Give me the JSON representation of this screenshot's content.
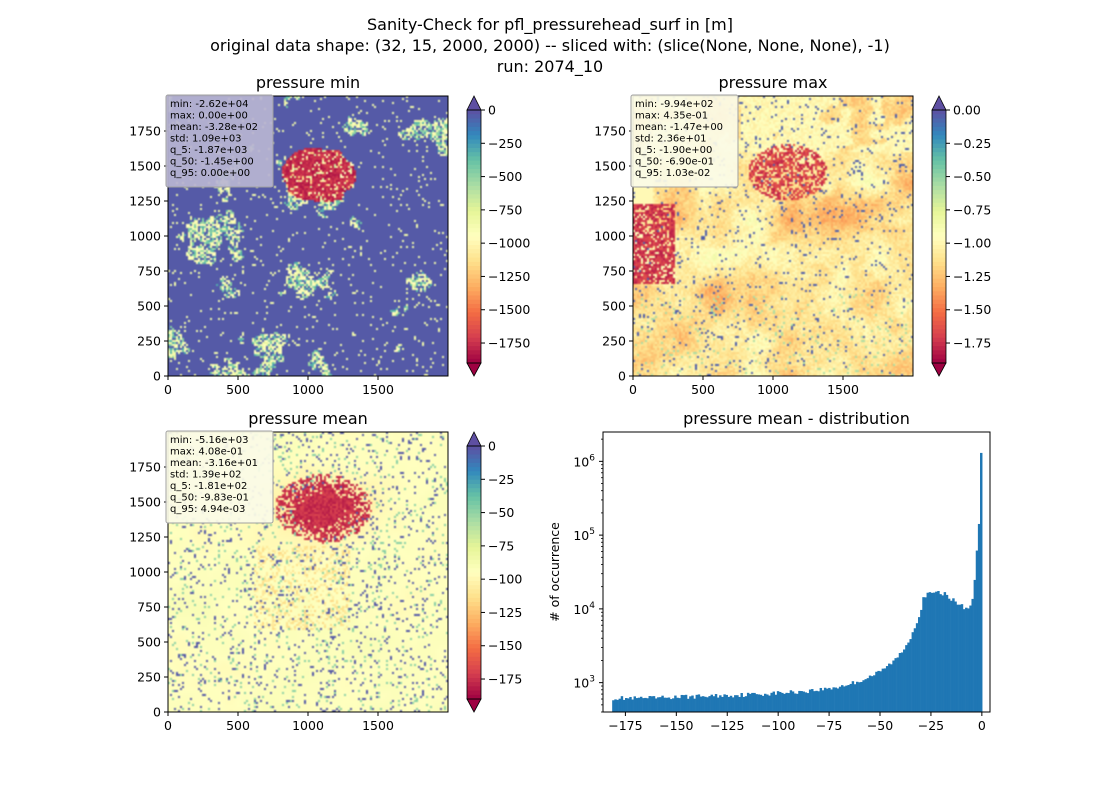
{
  "figure": {
    "title_lines": [
      "Sanity-Check for pfl_pressurehead_surf in [m]",
      "original data shape: (32, 15, 2000, 2000) -- sliced with: (slice(None, None, None), -1)",
      "run: 2074_10"
    ]
  },
  "chart_data": [
    {
      "type": "heatmap",
      "title": "pressure min",
      "colormap": "Spectral",
      "xlim": [
        0,
        2000
      ],
      "ylim": [
        0,
        2000
      ],
      "x_ticks": [
        "0",
        "500",
        "1000",
        "1500"
      ],
      "y_ticks": [
        "0",
        "250",
        "500",
        "750",
        "1000",
        "1250",
        "1500",
        "1750"
      ],
      "colorbar": {
        "range": [
          -1900,
          0
        ],
        "ticks": [
          "0",
          "−250",
          "−500",
          "−750",
          "−1000",
          "−1250",
          "−1500",
          "−1750"
        ],
        "extend": "both"
      },
      "stats": [
        "min: -2.62e+04",
        "max: 0.00e+00",
        "mean: -3.28e+02",
        "std: 1.09e+03",
        "q_5: -1.87e+03",
        "q_50: -1.45e+00",
        "q_95: 0.00e+00"
      ]
    },
    {
      "type": "heatmap",
      "title": "pressure max",
      "colormap": "Spectral",
      "xlim": [
        0,
        2000
      ],
      "ylim": [
        0,
        2000
      ],
      "x_ticks": [
        "0",
        "500",
        "1000",
        "1500"
      ],
      "y_ticks": [
        "0",
        "250",
        "500",
        "750",
        "1000",
        "1250",
        "1500",
        "1750"
      ],
      "colorbar": {
        "range": [
          -1.9,
          0
        ],
        "ticks": [
          "0.00",
          "−0.25",
          "−0.50",
          "−0.75",
          "−1.00",
          "−1.25",
          "−1.50",
          "−1.75"
        ],
        "extend": "both"
      },
      "stats": [
        "min: -9.94e+02",
        "max: 4.35e-01",
        "mean: -1.47e+00",
        "std: 2.36e+01",
        "q_5: -1.90e+00",
        "q_50: -6.90e-01",
        "q_95: 1.03e-02"
      ]
    },
    {
      "type": "heatmap",
      "title": "pressure mean",
      "colormap": "Spectral",
      "xlim": [
        0,
        2000
      ],
      "ylim": [
        0,
        2000
      ],
      "x_ticks": [
        "0",
        "500",
        "1000",
        "1500"
      ],
      "y_ticks": [
        "0",
        "250",
        "500",
        "750",
        "1000",
        "1250",
        "1500",
        "1750"
      ],
      "colorbar": {
        "range": [
          -190,
          0
        ],
        "ticks": [
          "0",
          "−25",
          "−50",
          "−75",
          "−100",
          "−125",
          "−150",
          "−175"
        ],
        "extend": "both"
      },
      "stats": [
        "min: -5.16e+03",
        "max: 4.08e-01",
        "mean: -3.16e+01",
        "std: 1.39e+02",
        "q_5: -1.81e+02",
        "q_50: -9.83e-01",
        "q_95: 4.94e-03"
      ]
    },
    {
      "type": "bar",
      "title": "pressure mean - distribution",
      "xlabel": "",
      "ylabel": "# of occurrence",
      "y_scale": "log",
      "xlim": [
        -186,
        4
      ],
      "ylim": [
        400,
        2500000
      ],
      "x_ticks": [
        "−175",
        "−150",
        "−125",
        "−100",
        "−75",
        "−50",
        "−25",
        "0"
      ],
      "y_ticks": [
        "10^3",
        "10^4",
        "10^5",
        "10^6"
      ],
      "bar_color": "#1f77b4",
      "anchors": [
        [
          -181,
          620
        ],
        [
          -170,
          610
        ],
        [
          -160,
          620
        ],
        [
          -150,
          640
        ],
        [
          -140,
          650
        ],
        [
          -130,
          665
        ],
        [
          -120,
          680
        ],
        [
          -110,
          700
        ],
        [
          -100,
          725
        ],
        [
          -90,
          755
        ],
        [
          -80,
          800
        ],
        [
          -70,
          880
        ],
        [
          -60,
          1050
        ],
        [
          -50,
          1400
        ],
        [
          -42,
          2100
        ],
        [
          -37,
          3200
        ],
        [
          -33,
          5500
        ],
        [
          -30,
          9500
        ],
        [
          -29,
          14000
        ],
        [
          -27,
          15500
        ],
        [
          -24,
          16500
        ],
        [
          -20,
          16500
        ],
        [
          -17,
          15500
        ],
        [
          -14,
          13000
        ],
        [
          -10,
          11000
        ],
        [
          -7,
          10000
        ],
        [
          -5,
          12000
        ],
        [
          -4,
          18000
        ],
        [
          -3,
          32000
        ],
        [
          -2,
          100000
        ],
        [
          -1,
          200000
        ],
        [
          -0.3,
          1600000
        ]
      ]
    }
  ]
}
